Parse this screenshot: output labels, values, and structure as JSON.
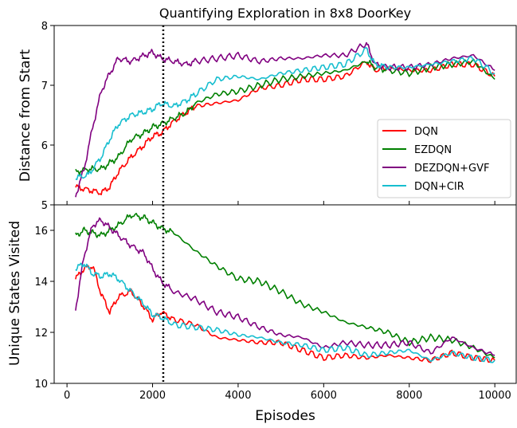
{
  "chart_data": [
    {
      "type": "line",
      "title": "Quantifying Exploration in 8x8 DoorKey",
      "xlabel": "",
      "ylabel": "Distance from Start",
      "xlim": [
        -300,
        10500
      ],
      "ylim": [
        5,
        8
      ],
      "xticks": [],
      "yticks": [
        5,
        6,
        7,
        8
      ],
      "grid": false,
      "legend_position": "right",
      "vline": {
        "x": 2250,
        "style": "dotted",
        "color": "#000000"
      },
      "series": [
        {
          "name": "DQN",
          "color": "#ff0000",
          "x": [
            200,
            500,
            800,
            1000,
            1200,
            1500,
            1800,
            2000,
            2200,
            2500,
            2800,
            3000,
            3500,
            4000,
            4500,
            5000,
            5500,
            6000,
            6500,
            7000,
            7200,
            7500,
            8000,
            8500,
            9000,
            9500,
            10000
          ],
          "values": [
            5.3,
            5.25,
            5.2,
            5.3,
            5.55,
            5.8,
            6.0,
            6.15,
            6.2,
            6.4,
            6.55,
            6.65,
            6.7,
            6.75,
            6.95,
            7.0,
            7.1,
            7.1,
            7.15,
            7.4,
            7.25,
            7.3,
            7.25,
            7.25,
            7.35,
            7.35,
            7.15
          ]
        },
        {
          "name": "EZDQN",
          "color": "#008000",
          "x": [
            200,
            500,
            800,
            1000,
            1200,
            1500,
            1800,
            2000,
            2200,
            2500,
            2800,
            3000,
            3500,
            4000,
            4500,
            5000,
            5500,
            6000,
            6500,
            7000,
            7200,
            7500,
            8000,
            8500,
            9000,
            9500,
            10000
          ],
          "values": [
            5.55,
            5.6,
            5.6,
            5.7,
            5.8,
            6.1,
            6.2,
            6.3,
            6.35,
            6.45,
            6.55,
            6.7,
            6.85,
            6.9,
            7.0,
            7.1,
            7.15,
            7.2,
            7.25,
            7.4,
            7.3,
            7.25,
            7.2,
            7.3,
            7.35,
            7.4,
            7.1
          ]
        },
        {
          "name": "DEZDQN+GVF",
          "color": "#800080",
          "x": [
            200,
            400,
            600,
            800,
            1000,
            1200,
            1500,
            1800,
            2000,
            2200,
            2500,
            2800,
            3000,
            3500,
            4000,
            4500,
            5000,
            5500,
            6000,
            6500,
            7000,
            7200,
            7500,
            8000,
            8500,
            9000,
            9500,
            10000
          ],
          "values": [
            5.15,
            5.6,
            6.3,
            6.9,
            7.2,
            7.45,
            7.4,
            7.5,
            7.55,
            7.45,
            7.4,
            7.35,
            7.4,
            7.45,
            7.5,
            7.4,
            7.45,
            7.45,
            7.5,
            7.5,
            7.7,
            7.35,
            7.3,
            7.3,
            7.35,
            7.45,
            7.5,
            7.25
          ]
        },
        {
          "name": "DQN+CIR",
          "color": "#17becf",
          "x": [
            200,
            500,
            800,
            1000,
            1200,
            1500,
            1800,
            2000,
            2200,
            2500,
            2800,
            3000,
            3500,
            4000,
            4500,
            5000,
            5500,
            6000,
            6500,
            7000,
            7200,
            7500,
            8000,
            8500,
            9000,
            9500,
            10000
          ],
          "values": [
            5.45,
            5.5,
            5.8,
            6.1,
            6.35,
            6.5,
            6.55,
            6.6,
            6.7,
            6.65,
            6.75,
            6.85,
            7.1,
            7.15,
            7.1,
            7.2,
            7.25,
            7.3,
            7.35,
            7.6,
            7.35,
            7.3,
            7.3,
            7.35,
            7.4,
            7.45,
            7.2
          ]
        }
      ]
    },
    {
      "type": "line",
      "title": "",
      "xlabel": "Episodes",
      "ylabel": "Unique States Visited",
      "xlim": [
        -300,
        10500
      ],
      "ylim": [
        10,
        17
      ],
      "xticks": [
        0,
        2000,
        4000,
        6000,
        8000,
        10000
      ],
      "yticks": [
        10,
        12,
        14,
        16
      ],
      "grid": false,
      "vline": {
        "x": 2250,
        "style": "dotted",
        "color": "#000000"
      },
      "series": [
        {
          "name": "DQN",
          "color": "#ff0000",
          "x": [
            200,
            400,
            600,
            800,
            1000,
            1200,
            1500,
            1800,
            2000,
            2200,
            2500,
            3000,
            3500,
            4000,
            4500,
            5000,
            5500,
            6000,
            6500,
            7000,
            7500,
            8000,
            8500,
            9000,
            9500,
            10000
          ],
          "values": [
            14.1,
            14.5,
            14.6,
            13.5,
            12.8,
            13.4,
            13.6,
            13.0,
            12.5,
            12.8,
            12.5,
            12.3,
            11.8,
            11.7,
            11.6,
            11.6,
            11.3,
            11.0,
            11.1,
            11.0,
            11.1,
            11.0,
            10.9,
            11.2,
            11.0,
            10.9
          ]
        },
        {
          "name": "EZDQN",
          "color": "#008000",
          "x": [
            200,
            400,
            600,
            800,
            1000,
            1200,
            1500,
            1800,
            2000,
            2200,
            2500,
            3000,
            3500,
            4000,
            4500,
            5000,
            5500,
            6000,
            6500,
            7000,
            7500,
            8000,
            8500,
            9000,
            9500,
            10000
          ],
          "values": [
            15.8,
            16.0,
            15.9,
            15.8,
            16.0,
            16.2,
            16.6,
            16.5,
            16.3,
            16.1,
            15.9,
            15.2,
            14.6,
            14.1,
            14.0,
            13.6,
            13.1,
            12.8,
            12.4,
            12.2,
            12.0,
            11.6,
            11.8,
            11.7,
            11.4,
            11.0
          ]
        },
        {
          "name": "DEZDQN+GVF",
          "color": "#800080",
          "x": [
            200,
            400,
            600,
            800,
            1000,
            1200,
            1500,
            1800,
            2000,
            2200,
            2500,
            3000,
            3500,
            4000,
            4500,
            5000,
            5500,
            6000,
            6500,
            7000,
            7500,
            8000,
            8500,
            9000,
            9500,
            10000
          ],
          "values": [
            12.9,
            15.0,
            16.2,
            16.4,
            16.1,
            15.8,
            15.4,
            15.1,
            14.5,
            14.0,
            13.6,
            13.3,
            12.8,
            12.6,
            12.2,
            11.9,
            11.8,
            11.4,
            11.6,
            11.5,
            11.5,
            11.6,
            11.2,
            11.8,
            11.4,
            11.1
          ]
        },
        {
          "name": "DQN+CIR",
          "color": "#17becf",
          "x": [
            200,
            400,
            600,
            800,
            1000,
            1200,
            1500,
            1800,
            2000,
            2200,
            2500,
            3000,
            3500,
            4000,
            4500,
            5000,
            5500,
            6000,
            6500,
            7000,
            7500,
            8000,
            8500,
            9000,
            9500,
            10000
          ],
          "values": [
            14.5,
            14.7,
            14.3,
            14.2,
            14.3,
            14.1,
            13.6,
            13.1,
            12.7,
            12.6,
            12.3,
            12.2,
            12.1,
            11.9,
            11.8,
            11.6,
            11.5,
            11.3,
            11.4,
            11.1,
            11.2,
            11.3,
            10.9,
            11.2,
            11.0,
            10.9
          ]
        }
      ]
    }
  ]
}
